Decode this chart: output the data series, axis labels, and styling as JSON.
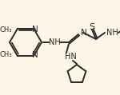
{
  "background_color": "#fdf5e6",
  "line_color": "#2a2a2a",
  "line_width": 1.4,
  "font_size": 7.0
}
